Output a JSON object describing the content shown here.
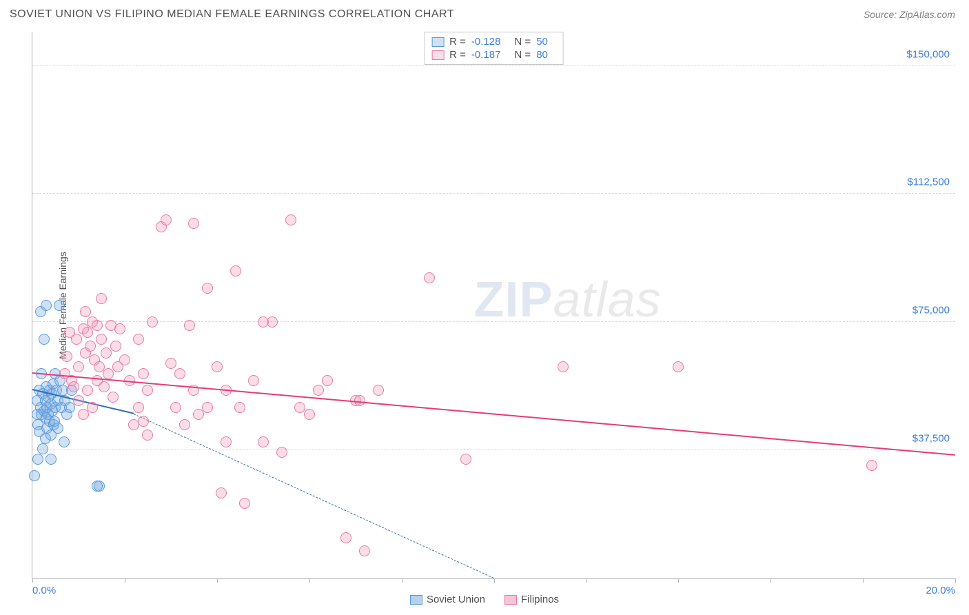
{
  "header": {
    "title": "SOVIET UNION VS FILIPINO MEDIAN FEMALE EARNINGS CORRELATION CHART",
    "source": "Source: ZipAtlas.com"
  },
  "watermark": {
    "part1": "ZIP",
    "part2": "atlas"
  },
  "chart": {
    "type": "scatter",
    "background_color": "#ffffff",
    "grid_color": "#d8d8d8",
    "axis_color": "#b0b0b0",
    "tick_label_color": "#3b7dd8",
    "axis_label_color": "#505050",
    "y_axis_label": "Median Female Earnings",
    "x": {
      "min": 0.0,
      "max": 20.0,
      "label_min": "0.0%",
      "label_max": "20.0%",
      "tick_step": 2.0
    },
    "y": {
      "min": 0,
      "max": 160000,
      "ticks": [
        37500,
        75000,
        112500,
        150000
      ],
      "tick_labels": [
        "$37,500",
        "$75,000",
        "$112,500",
        "$150,000"
      ]
    },
    "point_radius": 8,
    "point_border_width": 1.5,
    "series": [
      {
        "name": "Soviet Union",
        "fill_color": "rgba(120,170,230,0.35)",
        "stroke_color": "#5a9bd8",
        "R": "-0.128",
        "N": "50",
        "trend": {
          "x1": 0.0,
          "y1": 55000,
          "x2": 2.2,
          "y2": 48000,
          "x2b": 10.0,
          "y2b": 0,
          "color": "#2f6fb8",
          "width": 2.5,
          "dash_after_data": true
        },
        "points": [
          [
            0.05,
            30000
          ],
          [
            0.1,
            48000
          ],
          [
            0.1,
            52000
          ],
          [
            0.12,
            45000
          ],
          [
            0.15,
            55000
          ],
          [
            0.15,
            43000
          ],
          [
            0.18,
            50000
          ],
          [
            0.18,
            78000
          ],
          [
            0.2,
            48000
          ],
          [
            0.2,
            60000
          ],
          [
            0.22,
            54000
          ],
          [
            0.22,
            38000
          ],
          [
            0.25,
            49000
          ],
          [
            0.25,
            70000
          ],
          [
            0.28,
            52000
          ],
          [
            0.28,
            41000
          ],
          [
            0.3,
            47000
          ],
          [
            0.3,
            56000
          ],
          [
            0.3,
            80000
          ],
          [
            0.32,
            50000
          ],
          [
            0.32,
            44000
          ],
          [
            0.35,
            53000
          ],
          [
            0.35,
            48000
          ],
          [
            0.38,
            46000
          ],
          [
            0.38,
            55000
          ],
          [
            0.4,
            51000
          ],
          [
            0.4,
            42000
          ],
          [
            0.42,
            54000
          ],
          [
            0.44,
            49000
          ],
          [
            0.45,
            57000
          ],
          [
            0.46,
            45000
          ],
          [
            0.48,
            46000
          ],
          [
            0.5,
            60000
          ],
          [
            0.5,
            50000
          ],
          [
            0.52,
            55000
          ],
          [
            0.55,
            52000
          ],
          [
            0.56,
            44000
          ],
          [
            0.58,
            80000
          ],
          [
            0.6,
            58000
          ],
          [
            0.62,
            50000
          ],
          [
            0.65,
            55000
          ],
          [
            0.68,
            40000
          ],
          [
            0.7,
            52000
          ],
          [
            0.75,
            48000
          ],
          [
            0.8,
            50000
          ],
          [
            0.85,
            55000
          ],
          [
            1.4,
            27000
          ],
          [
            1.45,
            27000
          ],
          [
            0.12,
            35000
          ],
          [
            0.4,
            35000
          ]
        ]
      },
      {
        "name": "Filipinos",
        "fill_color": "rgba(240,150,180,0.32)",
        "stroke_color": "#e87ca0",
        "R": "-0.187",
        "N": "80",
        "trend": {
          "x1": 0.0,
          "y1": 60000,
          "x2": 20.0,
          "y2": 36000,
          "color": "#e63b7a",
          "width": 2.5,
          "dash_after_data": false
        },
        "points": [
          [
            0.7,
            60000
          ],
          [
            0.75,
            65000
          ],
          [
            0.8,
            72000
          ],
          [
            0.85,
            58000
          ],
          [
            0.9,
            56000
          ],
          [
            0.95,
            70000
          ],
          [
            1.0,
            52000
          ],
          [
            1.0,
            62000
          ],
          [
            1.1,
            73000
          ],
          [
            1.1,
            48000
          ],
          [
            1.15,
            66000
          ],
          [
            1.15,
            78000
          ],
          [
            1.2,
            72000
          ],
          [
            1.2,
            55000
          ],
          [
            1.25,
            68000
          ],
          [
            1.3,
            75000
          ],
          [
            1.3,
            50000
          ],
          [
            1.35,
            64000
          ],
          [
            1.4,
            58000
          ],
          [
            1.4,
            74000
          ],
          [
            1.45,
            62000
          ],
          [
            1.5,
            70000
          ],
          [
            1.5,
            82000
          ],
          [
            1.55,
            56000
          ],
          [
            1.6,
            66000
          ],
          [
            1.65,
            60000
          ],
          [
            1.7,
            74000
          ],
          [
            1.75,
            53000
          ],
          [
            1.8,
            68000
          ],
          [
            1.85,
            62000
          ],
          [
            1.9,
            73000
          ],
          [
            2.0,
            64000
          ],
          [
            2.1,
            58000
          ],
          [
            2.2,
            45000
          ],
          [
            2.3,
            70000
          ],
          [
            2.3,
            50000
          ],
          [
            2.4,
            60000
          ],
          [
            2.5,
            55000
          ],
          [
            2.5,
            42000
          ],
          [
            2.6,
            75000
          ],
          [
            2.8,
            103000
          ],
          [
            2.9,
            105000
          ],
          [
            3.0,
            63000
          ],
          [
            3.1,
            50000
          ],
          [
            3.2,
            60000
          ],
          [
            3.3,
            45000
          ],
          [
            3.4,
            74000
          ],
          [
            3.5,
            104000
          ],
          [
            3.5,
            55000
          ],
          [
            3.6,
            48000
          ],
          [
            3.8,
            50000
          ],
          [
            3.8,
            85000
          ],
          [
            4.0,
            62000
          ],
          [
            4.1,
            25000
          ],
          [
            4.2,
            55000
          ],
          [
            4.2,
            40000
          ],
          [
            4.4,
            90000
          ],
          [
            4.5,
            50000
          ],
          [
            4.6,
            22000
          ],
          [
            4.8,
            58000
          ],
          [
            5.0,
            40000
          ],
          [
            5.0,
            75000
          ],
          [
            5.2,
            75000
          ],
          [
            5.4,
            37000
          ],
          [
            5.6,
            105000
          ],
          [
            5.8,
            50000
          ],
          [
            6.0,
            48000
          ],
          [
            6.2,
            55000
          ],
          [
            6.4,
            58000
          ],
          [
            6.8,
            12000
          ],
          [
            7.0,
            52000
          ],
          [
            7.1,
            52000
          ],
          [
            7.2,
            8000
          ],
          [
            7.5,
            55000
          ],
          [
            8.6,
            88000
          ],
          [
            9.4,
            35000
          ],
          [
            11.5,
            62000
          ],
          [
            14.0,
            62000
          ],
          [
            18.2,
            33000
          ],
          [
            2.4,
            46000
          ]
        ]
      }
    ],
    "legend_top": {
      "R_label": "R =",
      "N_label": "N ="
    },
    "legend_bottom": [
      {
        "label": "Soviet Union",
        "fill": "rgba(120,170,230,0.55)",
        "stroke": "#5a9bd8"
      },
      {
        "label": "Filipinos",
        "fill": "rgba(240,150,180,0.55)",
        "stroke": "#e87ca0"
      }
    ]
  }
}
